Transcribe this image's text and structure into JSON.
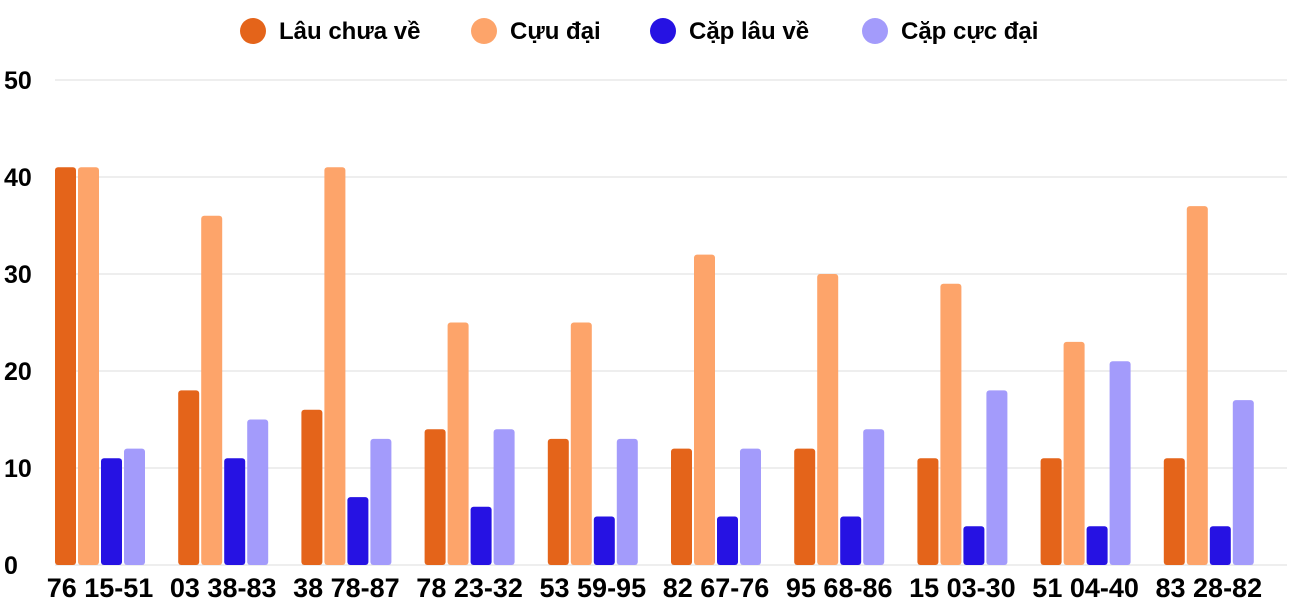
{
  "chart_data": {
    "type": "bar",
    "title": "",
    "xlabel": "",
    "ylabel": "",
    "ylim": [
      0,
      50
    ],
    "yticks": [
      0,
      10,
      20,
      30,
      40,
      50
    ],
    "grid": true,
    "legend_position": "top",
    "categories": [
      "76 15-51",
      "03 38-83",
      "38 78-87",
      "78 23-32",
      "53 59-95",
      "82 67-76",
      "95 68-86",
      "15 03-30",
      "51 04-40",
      "83 28-82"
    ],
    "series": [
      {
        "name": "Lâu chưa về",
        "color": "#e4641a",
        "values": [
          41,
          18,
          16,
          14,
          13,
          12,
          12,
          11,
          11,
          11
        ]
      },
      {
        "name": "Cựu đại",
        "color": "#fda46a",
        "values": [
          41,
          36,
          41,
          25,
          25,
          32,
          30,
          29,
          23,
          37
        ]
      },
      {
        "name": "Cặp lâu về",
        "color": "#2612e3",
        "values": [
          11,
          11,
          7,
          6,
          5,
          5,
          5,
          4,
          4,
          4
        ]
      },
      {
        "name": "Cặp cực đại",
        "color": "#a39bfb",
        "values": [
          12,
          15,
          13,
          14,
          13,
          12,
          14,
          18,
          21,
          17
        ]
      }
    ]
  }
}
